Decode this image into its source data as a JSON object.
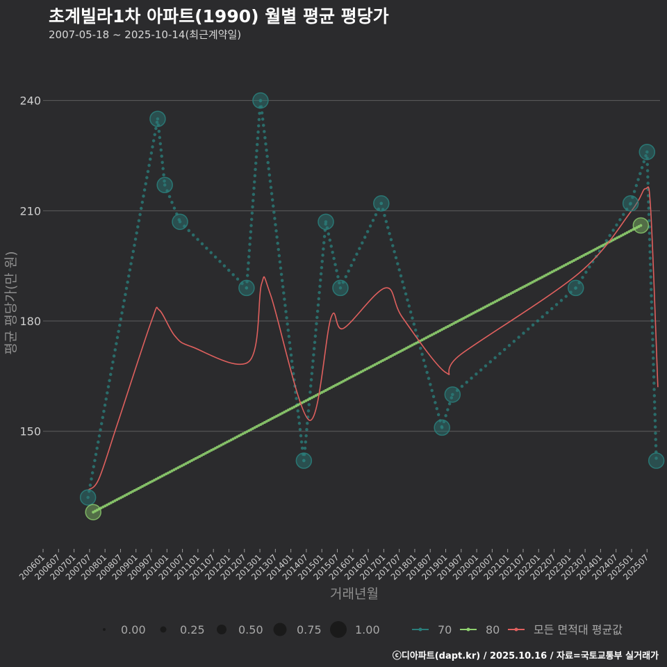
{
  "header": {
    "title": "초계빌라1차 아파트(1990) 월별 평균 평당가",
    "subtitle": "2007-05-18 ~ 2025-10-14(최근계약일)"
  },
  "footer": {
    "caption": "ⓒ디아파트(dapt.kr) / 2025.10.16 / 자료=국토교통부 실거래가"
  },
  "colors": {
    "bg": "#2b2b2d",
    "grid": "#5e5e5e",
    "s70": "#2a7d7a",
    "s80": "#8fd16f",
    "avg": "#e0605e"
  },
  "chart_data": {
    "type": "line",
    "title": "초계빌라1차 아파트(1990) 월별 평균 평당가",
    "xlabel": "거래년월",
    "ylabel": "평균 평당가(만 원)",
    "ylim": [
      118,
      256
    ],
    "yticks": [
      150,
      180,
      210,
      240
    ],
    "xlim": [
      2006.0,
      2025.92
    ],
    "xtick_labels": [
      "200601",
      "200607",
      "200701",
      "200707",
      "200801",
      "200807",
      "200901",
      "200907",
      "201001",
      "201007",
      "201101",
      "201107",
      "201201",
      "201207",
      "201301",
      "201307",
      "201401",
      "201407",
      "201501",
      "201507",
      "201601",
      "201607",
      "201701",
      "201707",
      "201801",
      "201807",
      "201901",
      "201907",
      "202001",
      "202007",
      "202101",
      "202107",
      "202201",
      "202207",
      "202301",
      "202307",
      "202401",
      "202407",
      "202501",
      "202507"
    ],
    "series": [
      {
        "name": "70",
        "marker_size": 0.7,
        "points": [
          {
            "t": 2007.45,
            "v": 132
          },
          {
            "t": 2009.7,
            "v": 235
          },
          {
            "t": 2009.93,
            "v": 217
          },
          {
            "t": 2010.42,
            "v": 207
          },
          {
            "t": 2012.57,
            "v": 189
          },
          {
            "t": 2013.02,
            "v": 240
          },
          {
            "t": 2014.42,
            "v": 142
          },
          {
            "t": 2015.13,
            "v": 207
          },
          {
            "t": 2015.6,
            "v": 189
          },
          {
            "t": 2016.92,
            "v": 212
          },
          {
            "t": 2018.88,
            "v": 151
          },
          {
            "t": 2019.22,
            "v": 160
          },
          {
            "t": 2023.2,
            "v": 189
          },
          {
            "t": 2024.97,
            "v": 212
          },
          {
            "t": 2025.5,
            "v": 226
          },
          {
            "t": 2025.8,
            "v": 142
          }
        ]
      },
      {
        "name": "80",
        "marker_size": 0.7,
        "points": [
          {
            "t": 2007.62,
            "v": 128
          },
          {
            "t": 2025.3,
            "v": 206
          }
        ]
      },
      {
        "name": "모든 면적대 평균값",
        "points": [
          {
            "t": 2007.45,
            "v": 134
          },
          {
            "t": 2007.8,
            "v": 137
          },
          {
            "t": 2008.4,
            "v": 152
          },
          {
            "t": 2009.5,
            "v": 180
          },
          {
            "t": 2009.75,
            "v": 183
          },
          {
            "t": 2010.25,
            "v": 176
          },
          {
            "t": 2010.8,
            "v": 173
          },
          {
            "t": 2012.65,
            "v": 169
          },
          {
            "t": 2013.05,
            "v": 190
          },
          {
            "t": 2013.35,
            "v": 187
          },
          {
            "t": 2014.6,
            "v": 153
          },
          {
            "t": 2015.3,
            "v": 181
          },
          {
            "t": 2015.7,
            "v": 178
          },
          {
            "t": 2017.05,
            "v": 189
          },
          {
            "t": 2017.6,
            "v": 181
          },
          {
            "t": 2019.0,
            "v": 166
          },
          {
            "t": 2019.5,
            "v": 171
          },
          {
            "t": 2023.3,
            "v": 193
          },
          {
            "t": 2025.0,
            "v": 210
          },
          {
            "t": 2025.45,
            "v": 216
          },
          {
            "t": 2025.62,
            "v": 210
          },
          {
            "t": 2025.85,
            "v": 162
          }
        ]
      }
    ],
    "size_legend": {
      "values": [
        "0.00",
        "0.25",
        "0.50",
        "0.75",
        "1.00"
      ],
      "sizes": [
        0.0,
        0.25,
        0.5,
        0.75,
        1.0
      ]
    },
    "legend_position": "bottom"
  }
}
